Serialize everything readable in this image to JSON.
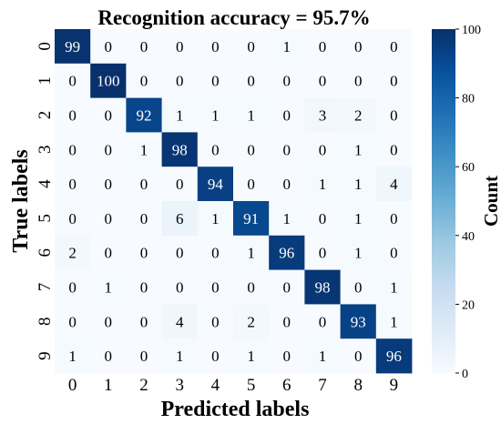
{
  "chart_data": {
    "type": "heatmap",
    "title": "Recognition accuracy = 95.7%",
    "xlabel": "Predicted labels",
    "ylabel": "True labels",
    "x_categories": [
      "0",
      "1",
      "2",
      "3",
      "4",
      "5",
      "6",
      "7",
      "8",
      "9"
    ],
    "y_categories": [
      "0",
      "1",
      "2",
      "3",
      "4",
      "5",
      "6",
      "7",
      "8",
      "9"
    ],
    "values": [
      [
        99,
        0,
        0,
        0,
        0,
        0,
        1,
        0,
        0,
        0
      ],
      [
        0,
        100,
        0,
        0,
        0,
        0,
        0,
        0,
        0,
        0
      ],
      [
        0,
        0,
        92,
        1,
        1,
        1,
        0,
        3,
        2,
        0
      ],
      [
        0,
        0,
        1,
        98,
        0,
        0,
        0,
        0,
        1,
        0
      ],
      [
        0,
        0,
        0,
        0,
        94,
        0,
        0,
        1,
        1,
        4
      ],
      [
        0,
        0,
        0,
        6,
        1,
        91,
        1,
        0,
        1,
        0
      ],
      [
        2,
        0,
        0,
        0,
        0,
        1,
        96,
        0,
        1,
        0
      ],
      [
        0,
        1,
        0,
        0,
        0,
        0,
        0,
        98,
        0,
        1
      ],
      [
        0,
        0,
        0,
        4,
        0,
        2,
        0,
        0,
        93,
        1
      ],
      [
        1,
        0,
        0,
        1,
        0,
        1,
        0,
        1,
        0,
        96
      ]
    ],
    "colormap": "Blues",
    "vmin": 0,
    "vmax": 100,
    "colorbar": {
      "label": "Count",
      "ticks": [
        0,
        20,
        40,
        60,
        80,
        100
      ],
      "tick_labels": [
        "0",
        "20",
        "40",
        "60",
        "80",
        "100"
      ]
    }
  }
}
